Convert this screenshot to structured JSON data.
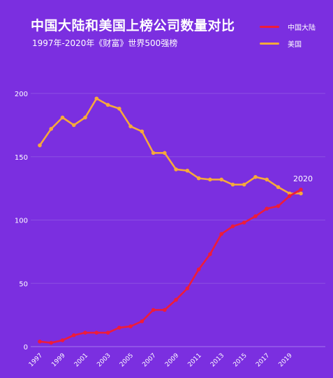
{
  "colors": {
    "background": "#7b2fe0",
    "china": "#ee1c3a",
    "usa": "#f6a93b",
    "grid": "#9b6ae6",
    "axis": "#a97ff0"
  },
  "chart_data": {
    "type": "line",
    "title": "中国大陆和美国上榜公司数量对比",
    "subtitle": "1997年-2020年《财富》世界500强榜",
    "xlabel": "",
    "ylabel": "",
    "x": [
      1997,
      1998,
      1999,
      2000,
      2001,
      2002,
      2003,
      2004,
      2005,
      2006,
      2007,
      2008,
      2009,
      2010,
      2011,
      2012,
      2013,
      2014,
      2015,
      2016,
      2017,
      2018,
      2019,
      2020
    ],
    "x_tick_labels": [
      "1997",
      "1999",
      "2001",
      "2003",
      "2005",
      "2007",
      "2009",
      "2011",
      "2013",
      "2015",
      "2017",
      "2019"
    ],
    "y_ticks": [
      "0",
      "50",
      "100",
      "150",
      "200"
    ],
    "ylim": [
      0,
      200
    ],
    "grid": "horizontal",
    "legend_position": "top-right",
    "series": [
      {
        "name": "中国大陆",
        "color": "#ee1c3a",
        "values": [
          4,
          3,
          5,
          9,
          11,
          11,
          11,
          15,
          16,
          20,
          29,
          29,
          37,
          46,
          61,
          73,
          89,
          95,
          98,
          103,
          109,
          111,
          119,
          124
        ]
      },
      {
        "name": "美国",
        "color": "#f6a93b",
        "values": [
          159,
          172,
          181,
          175,
          181,
          196,
          191,
          188,
          174,
          170,
          153,
          153,
          140,
          139,
          133,
          132,
          132,
          128,
          128,
          134,
          132,
          126,
          121,
          121
        ]
      }
    ],
    "annotations": [
      {
        "text": "2020",
        "x": 2020
      }
    ]
  }
}
